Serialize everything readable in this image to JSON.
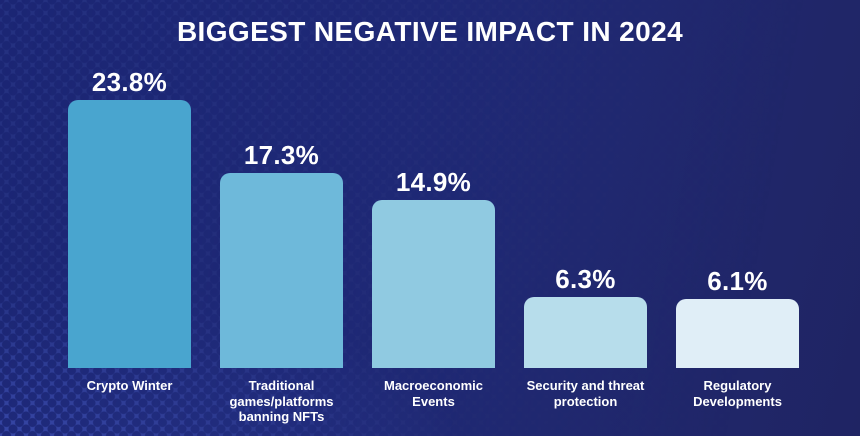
{
  "title": "BIGGEST NEGATIVE IMPACT IN 2024",
  "theme": {
    "background_left": "#243181",
    "background_right": "#1F2463",
    "halftone_dot_color": "#1B2573",
    "glow_color": "#4A5ECF",
    "text_color": "#FFFFFF"
  },
  "chart_data": {
    "type": "bar",
    "orientation": "vertical",
    "title": "BIGGEST NEGATIVE IMPACT IN 2024",
    "categories": [
      "Crypto Winter",
      "Traditional games/platforms banning NFTs",
      "Macroeconomic Events",
      "Security and threat protection",
      "Regulatory Developments"
    ],
    "category_lines": [
      [
        "Crypto Winter"
      ],
      [
        "Traditional",
        "games/platforms",
        "banning NFTs"
      ],
      [
        "Macroeconomic",
        "Events"
      ],
      [
        "Security and threat",
        "protection"
      ],
      [
        "Regulatory",
        "Developments"
      ]
    ],
    "values": [
      23.8,
      17.3,
      14.9,
      6.3,
      6.1
    ],
    "value_labels": [
      "23.8%",
      "17.3%",
      "14.9%",
      "6.3%",
      "6.1%"
    ],
    "bar_colors": [
      "#49A5CF",
      "#6EB9DA",
      "#90CAE1",
      "#B7DDEB",
      "#E0EEF7"
    ],
    "xlabel": "",
    "ylabel": "",
    "ylim": [
      0,
      25
    ],
    "grid": false,
    "legend": false,
    "value_label_position": "above-bar"
  }
}
